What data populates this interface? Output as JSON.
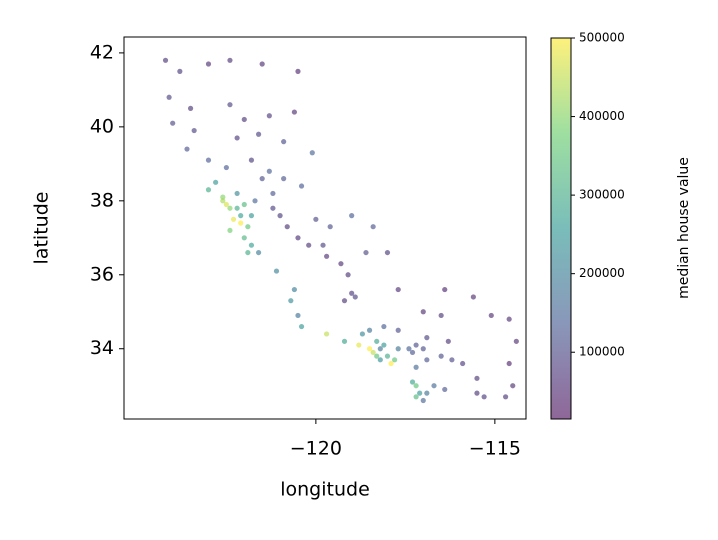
{
  "chart_data": {
    "type": "scatter",
    "xlabel": "longitude",
    "ylabel": "latitude",
    "colorbar_label": "median house value",
    "xlim": [
      -125.36,
      -114.13
    ],
    "ylim": [
      32.1,
      42.43
    ],
    "xticks": [
      {
        "value": -120,
        "label": "−120"
      },
      {
        "value": -115,
        "label": "−115"
      }
    ],
    "yticks": [
      34,
      36,
      38,
      40,
      42
    ],
    "clim": [
      14999,
      500001
    ],
    "cticks": [
      100000,
      200000,
      300000,
      400000,
      500000
    ],
    "colormap": [
      "#440154",
      "#3b528b",
      "#21918c",
      "#5ec962",
      "#fde725"
    ],
    "alpha": 0.6,
    "x": [
      -124.2,
      -123.8,
      -123.0,
      -122.4,
      -121.5,
      -120.5,
      -124.1,
      -123.5,
      -122.4,
      -122.0,
      -121.3,
      -120.6,
      -124.0,
      -123.4,
      -122.2,
      -121.6,
      -120.9,
      -120.1,
      -123.6,
      -123.0,
      -122.5,
      -121.8,
      -121.3,
      -120.9,
      -120.4,
      -121.5,
      -121.2,
      -123.0,
      -122.8,
      -122.6,
      -122.5,
      -122.4,
      -122.2,
      -122.1,
      -122.3,
      -122.1,
      -121.9,
      -121.8,
      -122.0,
      -122.4,
      -122.0,
      -121.8,
      -121.9,
      -121.6,
      -122.6,
      -122.2,
      -121.7,
      -121.2,
      -121.0,
      -120.8,
      -120.5,
      -120.2,
      -119.8,
      -119.7,
      -119.3,
      -119.1,
      -119.0,
      -119.2,
      -118.9,
      -120.0,
      -119.6,
      -119.0,
      -118.4,
      -118.0,
      -117.7,
      -117.0,
      -116.5,
      -120.6,
      -120.7,
      -120.5,
      -121.1,
      -118.6,
      -120.4,
      -119.7,
      -119.2,
      -118.8,
      -118.5,
      -118.4,
      -118.3,
      -118.2,
      -118.1,
      -118.0,
      -117.9,
      -117.8,
      -118.3,
      -117.7,
      -117.4,
      -117.2,
      -117.3,
      -117.0,
      -117.2,
      -116.9,
      -116.5,
      -116.2,
      -115.9,
      -115.5,
      -115.5,
      -115.3,
      -117.2,
      -117.3,
      -117.1,
      -117.2,
      -117.0,
      -116.9,
      -116.7,
      -116.4,
      -117.7,
      -118.1,
      -118.5,
      -116.9,
      -116.3,
      -115.1,
      -114.6,
      -114.6,
      -114.5,
      -114.7,
      -115.6,
      -116.4,
      -114.4,
      -118.2,
      -118.7
    ],
    "values": [
      41.8,
      41.5,
      41.7,
      41.8,
      41.7,
      41.5,
      40.8,
      40.5,
      40.6,
      40.2,
      40.3,
      40.4,
      40.1,
      39.9,
      39.7,
      39.8,
      39.6,
      39.3,
      39.4,
      39.1,
      38.9,
      39.1,
      38.8,
      38.6,
      38.4,
      38.6,
      38.2,
      38.3,
      38.5,
      38.1,
      37.9,
      37.8,
      37.8,
      37.6,
      37.5,
      37.4,
      37.3,
      37.6,
      37.9,
      37.2,
      37.0,
      36.8,
      36.6,
      36.6,
      38.0,
      38.2,
      38.0,
      37.8,
      37.6,
      37.3,
      37.0,
      36.8,
      36.8,
      36.5,
      36.3,
      36.0,
      35.5,
      35.3,
      35.4,
      37.5,
      37.3,
      37.6,
      37.3,
      36.6,
      35.6,
      35.0,
      34.9,
      35.6,
      35.3,
      34.9,
      36.1,
      36.6,
      34.6,
      34.4,
      34.2,
      34.1,
      34.0,
      33.9,
      33.8,
      34.0,
      34.1,
      33.8,
      33.6,
      33.7,
      34.2,
      34.0,
      34.0,
      34.1,
      33.9,
      34.0,
      33.5,
      33.7,
      33.8,
      33.7,
      33.6,
      33.2,
      32.8,
      32.7,
      33.0,
      33.1,
      32.8,
      32.7,
      32.6,
      32.8,
      33.0,
      32.9,
      34.5,
      34.6,
      34.5,
      34.3,
      34.2,
      34.9,
      34.8,
      33.6,
      33.0,
      32.7,
      35.4,
      35.6,
      34.2,
      33.7,
      34.4
    ],
    "color_values": [
      70000,
      80000,
      60000,
      70000,
      60000,
      50000,
      90000,
      70000,
      90000,
      70000,
      80000,
      60000,
      100000,
      90000,
      80000,
      90000,
      110000,
      150000,
      120000,
      130000,
      130000,
      80000,
      140000,
      120000,
      130000,
      110000,
      120000,
      300000,
      250000,
      400000,
      470000,
      400000,
      300000,
      270000,
      480000,
      500000,
      350000,
      250000,
      330000,
      380000,
      320000,
      270000,
      300000,
      200000,
      430000,
      220000,
      150000,
      90000,
      80000,
      70000,
      65000,
      70000,
      90000,
      60000,
      60000,
      70000,
      80000,
      70000,
      90000,
      100000,
      110000,
      130000,
      120000,
      80000,
      60000,
      60000,
      70000,
      200000,
      230000,
      180000,
      210000,
      100000,
      250000,
      450000,
      280000,
      480000,
      500000,
      450000,
      350000,
      180000,
      250000,
      300000,
      500000,
      350000,
      280000,
      180000,
      140000,
      110000,
      120000,
      110000,
      160000,
      120000,
      110000,
      100000,
      80000,
      70000,
      70000,
      80000,
      350000,
      280000,
      250000,
      330000,
      150000,
      180000,
      160000,
      120000,
      110000,
      130000,
      180000,
      90000,
      70000,
      60000,
      60000,
      50000,
      60000,
      70000,
      60000,
      50000,
      60000,
      240000,
      220000
    ]
  }
}
